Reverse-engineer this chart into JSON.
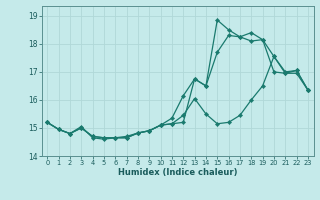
{
  "xlabel": "Humidex (Indice chaleur)",
  "bg_color": "#c5eaea",
  "grid_color": "#b0d8d8",
  "line_color": "#1a7a6e",
  "xlim": [
    -0.5,
    23.5
  ],
  "ylim": [
    14.0,
    19.35
  ],
  "xticks": [
    0,
    1,
    2,
    3,
    4,
    5,
    6,
    7,
    8,
    9,
    10,
    11,
    12,
    13,
    14,
    15,
    16,
    17,
    18,
    19,
    20,
    21,
    22,
    23
  ],
  "yticks": [
    14,
    15,
    16,
    17,
    18,
    19
  ],
  "line1_y": [
    15.2,
    14.95,
    14.8,
    15.05,
    14.65,
    14.6,
    14.65,
    14.65,
    14.82,
    14.9,
    15.1,
    15.15,
    15.45,
    16.05,
    15.5,
    15.15,
    15.2,
    15.45,
    16.0,
    16.5,
    17.55,
    17.0,
    17.05,
    16.35
  ],
  "line2_y": [
    15.2,
    14.95,
    14.8,
    15.0,
    14.7,
    14.65,
    14.65,
    14.7,
    14.82,
    14.9,
    15.1,
    15.35,
    16.15,
    16.75,
    16.5,
    17.7,
    18.3,
    18.25,
    18.1,
    18.15,
    17.55,
    16.95,
    16.95,
    16.35
  ],
  "line3_y": [
    15.2,
    14.95,
    14.8,
    15.0,
    14.7,
    14.65,
    14.65,
    14.65,
    14.82,
    14.9,
    15.1,
    15.15,
    15.2,
    16.75,
    16.5,
    18.85,
    18.5,
    18.25,
    18.4,
    18.15,
    17.0,
    16.95,
    17.05,
    16.35
  ]
}
